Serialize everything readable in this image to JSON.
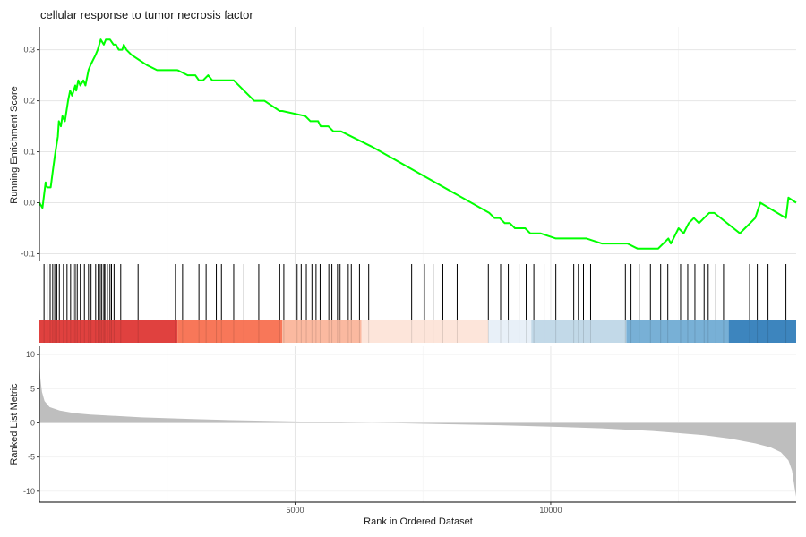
{
  "chart_data": {
    "type": "line",
    "title": "cellular response to tumor necrosis factor",
    "xlabel": "Rank in Ordered Dataset",
    "xlim": [
      0,
      14800
    ],
    "x_ticks": [
      {
        "value": 5000,
        "label": "5000"
      },
      {
        "value": 10000,
        "label": "10000"
      }
    ],
    "grid": true,
    "panels": {
      "running_score": {
        "ylabel": "Running Enrichment Score",
        "ylim": [
          -0.115,
          0.345
        ],
        "y_ticks": [
          {
            "value": 0.3,
            "label": "0.3"
          },
          {
            "value": 0.2,
            "label": "0.2"
          },
          {
            "value": 0.1,
            "label": "0.1"
          },
          {
            "value": 0.0,
            "label": "0.0"
          },
          {
            "value": -0.1,
            "label": "-0.1"
          }
        ],
        "color": "#00ff00",
        "x": [
          0,
          60,
          120,
          150,
          220,
          260,
          300,
          330,
          360,
          380,
          420,
          450,
          500,
          560,
          600,
          640,
          700,
          720,
          760,
          800,
          860,
          900,
          960,
          1000,
          1050,
          1100,
          1140,
          1200,
          1260,
          1300,
          1380,
          1450,
          1500,
          1550,
          1620,
          1650,
          1700,
          1800,
          1950,
          2100,
          2300,
          2650,
          2700,
          2900,
          2950,
          3050,
          3120,
          3200,
          3300,
          3380,
          3500,
          3600,
          3700,
          3800,
          4000,
          4200,
          4400,
          4700,
          4750,
          5200,
          5300,
          5450,
          5500,
          5650,
          5750,
          5900,
          6300,
          6500,
          8800,
          8900,
          9000,
          9100,
          9200,
          9300,
          9400,
          9500,
          9600,
          9700,
          9800,
          10100,
          10200,
          10400,
          10500,
          10600,
          10700,
          11000,
          11100,
          11200,
          11300,
          11400,
          11500,
          11700,
          11800,
          11900,
          12000,
          12100,
          12200,
          12300,
          12350,
          12400,
          12500,
          12600,
          12650,
          12700,
          12800,
          12900,
          13000,
          13100,
          13200,
          13700,
          13800,
          13900,
          14000,
          14100,
          14600,
          14650,
          14800
        ],
        "values": [
          0.0,
          -0.01,
          0.04,
          0.03,
          0.03,
          0.06,
          0.09,
          0.11,
          0.13,
          0.16,
          0.15,
          0.17,
          0.16,
          0.2,
          0.22,
          0.21,
          0.23,
          0.22,
          0.24,
          0.23,
          0.24,
          0.23,
          0.26,
          0.27,
          0.28,
          0.29,
          0.3,
          0.32,
          0.31,
          0.32,
          0.32,
          0.31,
          0.31,
          0.3,
          0.3,
          0.31,
          0.3,
          0.29,
          0.28,
          0.27,
          0.26,
          0.26,
          0.26,
          0.25,
          0.25,
          0.25,
          0.24,
          0.24,
          0.25,
          0.24,
          0.24,
          0.24,
          0.24,
          0.24,
          0.22,
          0.2,
          0.2,
          0.18,
          0.18,
          0.17,
          0.16,
          0.16,
          0.15,
          0.15,
          0.14,
          0.14,
          0.12,
          0.11,
          -0.02,
          -0.03,
          -0.03,
          -0.04,
          -0.04,
          -0.05,
          -0.05,
          -0.05,
          -0.06,
          -0.06,
          -0.06,
          -0.07,
          -0.07,
          -0.07,
          -0.07,
          -0.07,
          -0.07,
          -0.08,
          -0.08,
          -0.08,
          -0.08,
          -0.08,
          -0.08,
          -0.09,
          -0.09,
          -0.09,
          -0.09,
          -0.09,
          -0.08,
          -0.07,
          -0.08,
          -0.07,
          -0.05,
          -0.06,
          -0.05,
          -0.04,
          -0.03,
          -0.04,
          -0.03,
          -0.02,
          -0.02,
          -0.06,
          -0.05,
          -0.04,
          -0.03,
          0.0,
          -0.03,
          0.01,
          0.0
        ]
      },
      "hits": {
        "positions": [
          90,
          150,
          210,
          260,
          300,
          340,
          390,
          470,
          540,
          610,
          660,
          700,
          740,
          800,
          880,
          960,
          1010,
          1100,
          1150,
          1190,
          1220,
          1260,
          1280,
          1330,
          1380,
          1410,
          1460,
          1590,
          1930,
          2660,
          2800,
          3120,
          3260,
          3460,
          3560,
          3800,
          4000,
          4290,
          4700,
          4780,
          5040,
          5120,
          5220,
          5330,
          5410,
          5490,
          5660,
          5720,
          5830,
          5880,
          6040,
          6100,
          6260,
          6440,
          7280,
          7530,
          7700,
          7890,
          8170,
          8780,
          9020,
          9170,
          9380,
          9520,
          9670,
          9870,
          10100,
          10450,
          10540,
          10640,
          10780,
          11460,
          11570,
          11730,
          11950,
          12150,
          12290,
          12540,
          12680,
          12820,
          13000,
          13080,
          13230,
          13380,
          13890,
          14040,
          14250,
          14600
        ]
      },
      "heatmap": {
        "colors": [
          "#b2182b",
          "#d6604d",
          "#f4a582",
          "#fddbc7",
          "#f7f7f7",
          "#d1e5f0",
          "#92c5de",
          "#4393c3",
          "#2166ac"
        ],
        "segments": [
          {
            "start": 0,
            "end": 2700,
            "color": "#e0413f"
          },
          {
            "start": 2700,
            "end": 4750,
            "color": "#f87759"
          },
          {
            "start": 4750,
            "end": 6300,
            "color": "#fbb9a0"
          },
          {
            "start": 6300,
            "end": 8780,
            "color": "#fde5da"
          },
          {
            "start": 8780,
            "end": 9620,
            "color": "#e8f0f8"
          },
          {
            "start": 9620,
            "end": 11480,
            "color": "#c2d9e8"
          },
          {
            "start": 11480,
            "end": 13480,
            "color": "#78b0d6"
          },
          {
            "start": 13480,
            "end": 14800,
            "color": "#3d85be"
          }
        ]
      },
      "ranked_metric": {
        "ylabel": "Ranked List Metric",
        "ylim": [
          -11.6,
          11.2
        ],
        "y_ticks": [
          {
            "value": 10,
            "label": "10"
          },
          {
            "value": 5,
            "label": "5"
          },
          {
            "value": 0,
            "label": "0"
          },
          {
            "value": -5,
            "label": "-5"
          },
          {
            "value": -10,
            "label": "-10"
          }
        ],
        "fill_color": "#bebebe",
        "x": [
          0,
          20,
          50,
          100,
          200,
          400,
          700,
          1000,
          1500,
          2000,
          3000,
          4000,
          5000,
          6000,
          7000,
          8000,
          9000,
          10000,
          11000,
          12000,
          12500,
          13000,
          13500,
          14000,
          14300,
          14500,
          14650,
          14720,
          14770,
          14800
        ],
        "values": [
          9.5,
          6.5,
          4.5,
          3.2,
          2.3,
          1.8,
          1.4,
          1.2,
          1.0,
          0.8,
          0.55,
          0.35,
          0.2,
          0.05,
          -0.05,
          -0.2,
          -0.35,
          -0.55,
          -0.8,
          -1.2,
          -1.5,
          -1.8,
          -2.3,
          -3.0,
          -3.6,
          -4.3,
          -5.5,
          -7.0,
          -9.5,
          -10.8
        ]
      }
    }
  }
}
